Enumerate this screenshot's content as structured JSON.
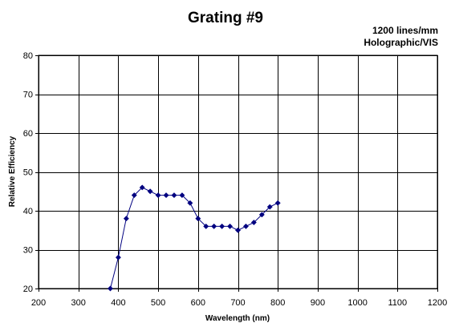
{
  "chart_data": {
    "type": "line",
    "title": "Grating #9",
    "subtitle_lines": [
      "1200 lines/mm",
      "Holographic/VIS"
    ],
    "xlabel": "Wavelength (nm)",
    "ylabel": "Relative Efficiency",
    "xlim": [
      200,
      1200
    ],
    "ylim": [
      20,
      80
    ],
    "x_ticks": [
      200,
      300,
      400,
      500,
      600,
      700,
      800,
      900,
      1000,
      1100,
      1200
    ],
    "y_ticks": [
      20,
      30,
      40,
      50,
      60,
      70,
      80
    ],
    "grid": true,
    "series": [
      {
        "color": "#000080",
        "marker": "diamond",
        "x": [
          380,
          400,
          420,
          440,
          460,
          480,
          500,
          520,
          540,
          560,
          580,
          600,
          620,
          640,
          660,
          680,
          700,
          720,
          740,
          760,
          780,
          800
        ],
        "y": [
          20,
          28,
          38,
          44,
          46,
          45,
          44,
          44,
          44,
          44,
          42,
          38,
          36,
          36,
          36,
          36,
          35,
          36,
          37,
          39,
          41,
          42
        ]
      }
    ]
  }
}
